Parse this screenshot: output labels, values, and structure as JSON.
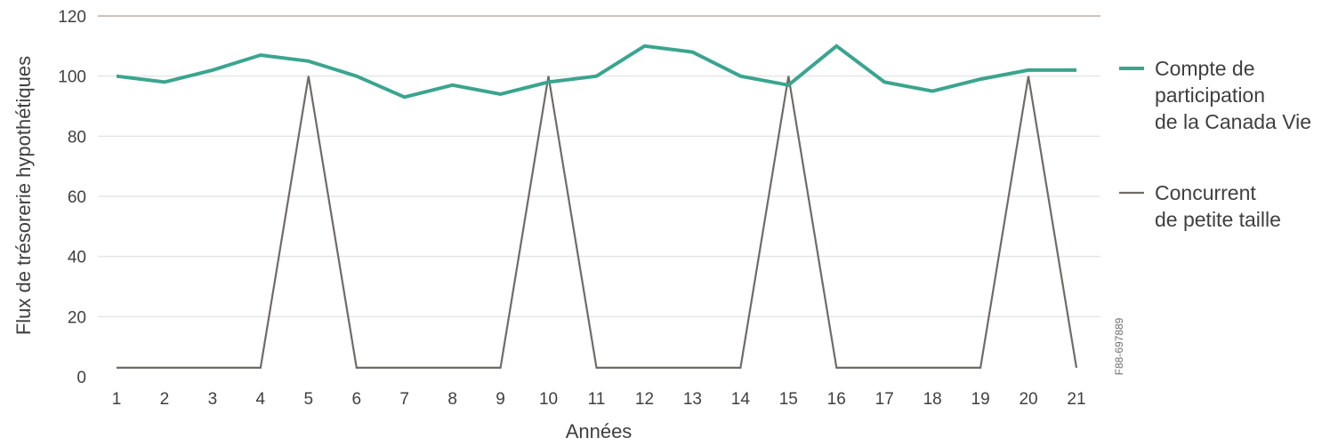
{
  "chart_data": {
    "type": "line",
    "title": "",
    "xlabel": "Années",
    "ylabel": "Flux de trésorerie hypothétiques",
    "x": [
      1,
      2,
      3,
      4,
      5,
      6,
      7,
      8,
      9,
      10,
      11,
      12,
      13,
      14,
      15,
      16,
      17,
      18,
      19,
      20,
      21
    ],
    "ylim": [
      0,
      120
    ],
    "yticks": [
      0,
      20,
      40,
      60,
      80,
      100,
      120
    ],
    "grid": "horizontal",
    "legend_position": "right",
    "series": [
      {
        "name": "Compte de participation de la Canada Vie",
        "legend_lines": [
          "Compte de",
          "participation",
          "de la Canada Vie"
        ],
        "color": "#3aa58f",
        "values": [
          100,
          98,
          102,
          107,
          105,
          100,
          93,
          97,
          94,
          98,
          100,
          110,
          108,
          100,
          97,
          110,
          98,
          95,
          99,
          102,
          102
        ]
      },
      {
        "name": "Concurrent de petite taille",
        "legend_lines": [
          "Concurrent",
          "de petite taille"
        ],
        "color": "#6e6c66",
        "values": [
          3,
          3,
          3,
          3,
          100,
          3,
          3,
          3,
          3,
          100,
          3,
          3,
          3,
          3,
          100,
          3,
          3,
          3,
          3,
          100,
          3
        ]
      }
    ],
    "annotation": "F88-697889"
  }
}
